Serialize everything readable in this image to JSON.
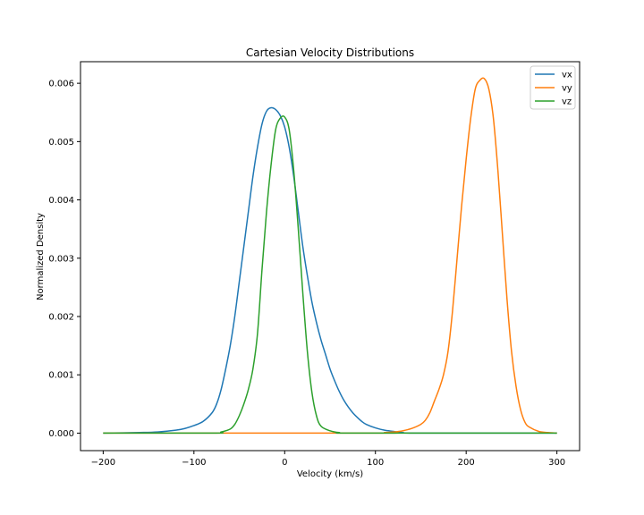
{
  "chart_data": {
    "type": "line",
    "title": "Cartesian Velocity Distributions",
    "xlabel": "Velocity (km/s)",
    "ylabel": "Normalized Density",
    "xlim": [
      -225,
      325
    ],
    "ylim": [
      -0.0003,
      0.00637
    ],
    "xticks": [
      -200,
      -100,
      0,
      100,
      200,
      300
    ],
    "xtick_labels": [
      "−200",
      "−100",
      "0",
      "100",
      "200",
      "300"
    ],
    "yticks": [
      0.0,
      0.001,
      0.002,
      0.003,
      0.004,
      0.005,
      0.006
    ],
    "ytick_labels": [
      "0.000",
      "0.001",
      "0.002",
      "0.003",
      "0.004",
      "0.005",
      "0.006"
    ],
    "grid": false,
    "legend": "top-right",
    "series": [
      {
        "name": "vx",
        "color": "#1f77b4",
        "points": [
          [
            -200,
            0.0
          ],
          [
            -160,
            1e-05
          ],
          [
            -140,
            2e-05
          ],
          [
            -120,
            5e-05
          ],
          [
            -110,
            8e-05
          ],
          [
            -100,
            0.00013
          ],
          [
            -90,
            0.0002
          ],
          [
            -80,
            0.00035
          ],
          [
            -75,
            0.0005
          ],
          [
            -70,
            0.00075
          ],
          [
            -65,
            0.0011
          ],
          [
            -60,
            0.0015
          ],
          [
            -55,
            0.002
          ],
          [
            -50,
            0.0026
          ],
          [
            -45,
            0.0032
          ],
          [
            -40,
            0.0038
          ],
          [
            -35,
            0.0044
          ],
          [
            -30,
            0.0049
          ],
          [
            -25,
            0.0053
          ],
          [
            -20,
            0.00552
          ],
          [
            -15,
            0.00558
          ],
          [
            -10,
            0.00555
          ],
          [
            -5,
            0.00545
          ],
          [
            0,
            0.00525
          ],
          [
            5,
            0.0049
          ],
          [
            10,
            0.0044
          ],
          [
            15,
            0.0038
          ],
          [
            20,
            0.0032
          ],
          [
            25,
            0.0027
          ],
          [
            30,
            0.00225
          ],
          [
            35,
            0.0019
          ],
          [
            40,
            0.0016
          ],
          [
            45,
            0.00135
          ],
          [
            50,
            0.0011
          ],
          [
            55,
            0.0009
          ],
          [
            60,
            0.00072
          ],
          [
            65,
            0.00057
          ],
          [
            70,
            0.00045
          ],
          [
            75,
            0.00035
          ],
          [
            80,
            0.00027
          ],
          [
            85,
            0.0002
          ],
          [
            90,
            0.00015
          ],
          [
            100,
            9e-05
          ],
          [
            110,
            5e-05
          ],
          [
            120,
            3e-05
          ],
          [
            130,
            1e-05
          ],
          [
            150,
            0.0
          ],
          [
            300,
            0.0
          ]
        ]
      },
      {
        "name": "vy",
        "color": "#ff7f0e",
        "points": [
          [
            -200,
            0.0
          ],
          [
            100,
            0.0
          ],
          [
            110,
            1e-05
          ],
          [
            120,
            2e-05
          ],
          [
            130,
            4e-05
          ],
          [
            140,
            8e-05
          ],
          [
            150,
            0.00015
          ],
          [
            155,
            0.00022
          ],
          [
            160,
            0.00035
          ],
          [
            165,
            0.00055
          ],
          [
            170,
            0.00075
          ],
          [
            175,
            0.001
          ],
          [
            180,
            0.0014
          ],
          [
            185,
            0.0021
          ],
          [
            190,
            0.003
          ],
          [
            195,
            0.0039
          ],
          [
            200,
            0.0047
          ],
          [
            205,
            0.0054
          ],
          [
            210,
            0.0059
          ],
          [
            215,
            0.00605
          ],
          [
            220,
            0.00608
          ],
          [
            225,
            0.0059
          ],
          [
            230,
            0.0054
          ],
          [
            235,
            0.0045
          ],
          [
            240,
            0.0034
          ],
          [
            245,
            0.0023
          ],
          [
            250,
            0.0014
          ],
          [
            255,
            0.0008
          ],
          [
            260,
            0.0004
          ],
          [
            265,
            0.00018
          ],
          [
            270,
            0.0001
          ],
          [
            280,
            3e-05
          ],
          [
            290,
            1e-05
          ],
          [
            300,
            0.0
          ]
        ]
      },
      {
        "name": "vz",
        "color": "#2ca02c",
        "points": [
          [
            -200,
            0.0
          ],
          [
            -80,
            0.0
          ],
          [
            -70,
            2e-05
          ],
          [
            -60,
            7e-05
          ],
          [
            -55,
            0.00015
          ],
          [
            -50,
            0.0003
          ],
          [
            -45,
            0.0005
          ],
          [
            -40,
            0.00075
          ],
          [
            -35,
            0.0011
          ],
          [
            -30,
            0.0017
          ],
          [
            -25,
            0.0028
          ],
          [
            -20,
            0.0038
          ],
          [
            -15,
            0.0046
          ],
          [
            -10,
            0.0052
          ],
          [
            -5,
            0.0054
          ],
          [
            0,
            0.00542
          ],
          [
            5,
            0.0052
          ],
          [
            10,
            0.0045
          ],
          [
            15,
            0.0035
          ],
          [
            20,
            0.0024
          ],
          [
            25,
            0.0014
          ],
          [
            30,
            0.0007
          ],
          [
            35,
            0.0003
          ],
          [
            40,
            0.00012
          ],
          [
            50,
            4e-05
          ],
          [
            60,
            1e-05
          ],
          [
            80,
            0.0
          ],
          [
            300,
            0.0
          ]
        ]
      }
    ]
  }
}
